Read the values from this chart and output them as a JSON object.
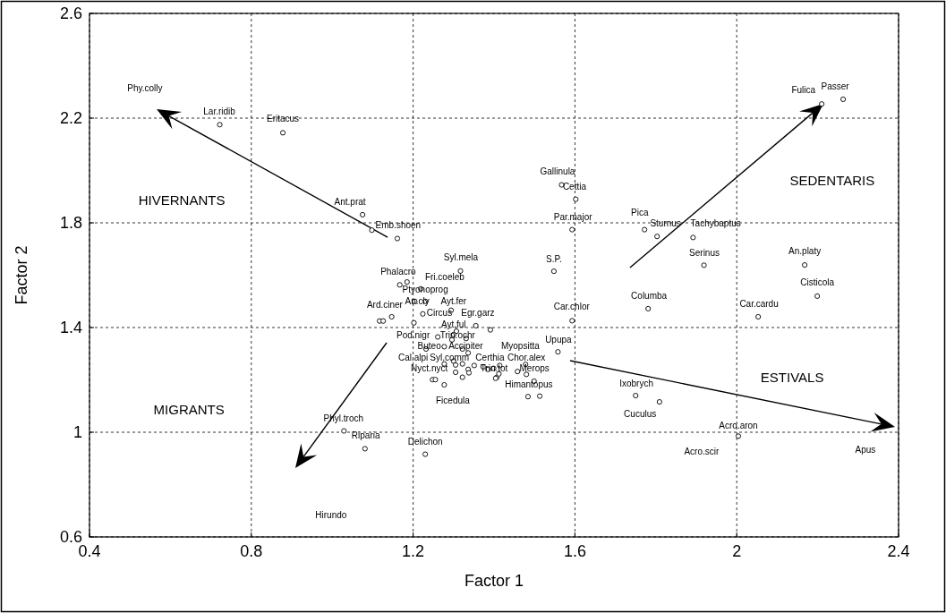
{
  "chart_data": {
    "type": "scatter",
    "xlabel": "Factor 1",
    "ylabel": "Factor 2",
    "xlim": [
      0.4,
      2.4
    ],
    "ylim": [
      0.6,
      2.6
    ],
    "xticks": [
      0.4,
      0.8,
      1.2,
      1.6,
      {
        "value": 2,
        "label": "2"
      },
      2.4
    ],
    "yticks": [
      0.6,
      {
        "value": 1,
        "label": "1"
      },
      1.4,
      1.8,
      2.2,
      2.6
    ],
    "grid": true,
    "marker": "circle",
    "series": [
      {
        "color": "#000000",
        "x": [
          0.722,
          0.878,
          1.075,
          1.098,
          1.161,
          2.21,
          2.263,
          1.567,
          1.602,
          1.593,
          1.772,
          1.803,
          1.892,
          1.919,
          1.548,
          2.168,
          2.199,
          1.781,
          2.053,
          1.593,
          1.317,
          1.185,
          1.167,
          1.219,
          1.23,
          1.204,
          1.117,
          1.126,
          1.147,
          1.224,
          1.202,
          1.294,
          1.355,
          1.391,
          1.307,
          1.3,
          1.261,
          1.296,
          1.331,
          1.277,
          1.322,
          1.232,
          1.336,
          1.3,
          1.277,
          1.305,
          1.322,
          1.351,
          1.336,
          1.305,
          1.322,
          1.338,
          1.373,
          1.385,
          1.399,
          1.407,
          1.414,
          1.478,
          1.499,
          1.484,
          1.513,
          1.248,
          1.255,
          1.277,
          1.029,
          1.081,
          1.23,
          1.558,
          1.458,
          1.48,
          1.412,
          1.404,
          1.75,
          1.809,
          2.004
        ],
        "values": [
          2.175,
          2.144,
          1.831,
          1.772,
          1.74,
          2.254,
          2.272,
          1.945,
          1.89,
          1.774,
          1.774,
          1.748,
          1.744,
          1.638,
          1.615,
          1.639,
          1.52,
          1.472,
          1.441,
          1.426,
          1.616,
          1.574,
          1.563,
          1.548,
          1.5,
          1.5,
          1.425,
          1.425,
          1.441,
          1.452,
          1.418,
          1.466,
          1.407,
          1.391,
          1.386,
          1.373,
          1.364,
          1.353,
          1.358,
          1.327,
          1.318,
          1.318,
          1.303,
          1.272,
          1.261,
          1.257,
          1.261,
          1.255,
          1.24,
          1.229,
          1.21,
          1.227,
          1.25,
          1.24,
          1.244,
          1.21,
          1.255,
          1.259,
          1.195,
          1.136,
          1.138,
          1.201,
          1.201,
          1.181,
          1.005,
          0.937,
          0.916,
          1.307,
          1.232,
          1.221,
          1.223,
          1.206,
          1.14,
          1.116,
          0.985
        ]
      }
    ],
    "annotations": [
      "Phy.colly",
      "Lar.ridib",
      "Eritacus",
      "HIVERNANTS",
      "Ant.prat",
      "Emb.shoen",
      "Fulica",
      "Passer",
      "SEDENTARIS",
      "Gallinula",
      "Cettia",
      "Par.major",
      "Pica",
      "Sturnus",
      "Tachybaptus",
      "Serinus",
      "S.P.",
      "An.platy",
      "Cisticola",
      "Columba",
      "Car.cardu",
      "Car.chlor",
      "Syl.mela",
      "Phalacro",
      "Fri.coeleb",
      "Ptyonoprog",
      "An.cly",
      "Ayt.fer",
      "Ard.ciner",
      "Circus",
      "Egr.garz",
      "Ayt.ful",
      "Trin.ochr",
      "Pod.nigr",
      "Buteo",
      "Accipiter",
      "Cal.alpi",
      "Certhia",
      "Syl.comm",
      "Nyct.nyct",
      "Trin.tot",
      "Myopsitta",
      "Chor.alex",
      "Merops",
      "Himantopus",
      "Upupa",
      "Ficedula",
      "Phyl.troch",
      "Riparia",
      "Delichon",
      "Ixobrych",
      "Cuculus",
      "Hirundo",
      "MIGRANTS",
      "ESTIVALS",
      "Acro.aron",
      "Acro.scir",
      "Apus"
    ]
  }
}
